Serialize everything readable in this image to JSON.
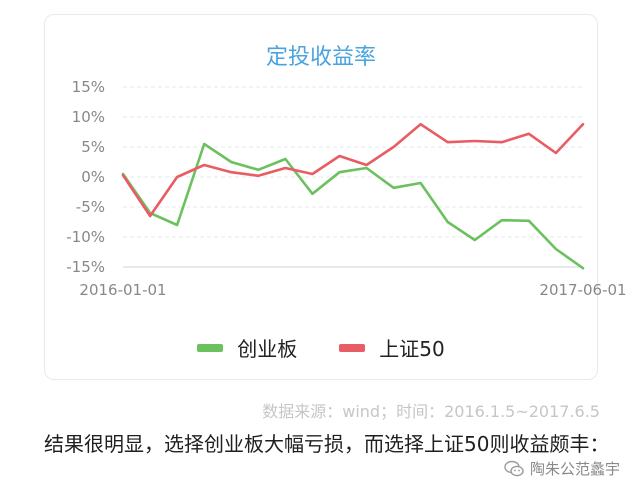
{
  "chart_data": {
    "type": "line",
    "title": "定投收益率",
    "x_tick_labels": [
      "2016-01-01",
      "2017-06-01"
    ],
    "y_tick_labels": [
      "15%",
      "10%",
      "5%",
      "0%",
      "-5%",
      "-10%",
      "-15%"
    ],
    "ylim": [
      -15,
      15
    ],
    "yticks": [
      15,
      10,
      5,
      0,
      -5,
      -10,
      -15
    ],
    "grid": "horizontal dashed",
    "legend_position": "bottom",
    "x": [
      "2016-01",
      "2016-02",
      "2016-03",
      "2016-04",
      "2016-05",
      "2016-06",
      "2016-07",
      "2016-08",
      "2016-09",
      "2016-10",
      "2016-11",
      "2016-12",
      "2017-01",
      "2017-02",
      "2017-03",
      "2017-04",
      "2017-05",
      "2017-06"
    ],
    "series": [
      {
        "name": "创业板",
        "color": "#6cc15f",
        "values": [
          0.5,
          -6.0,
          -8.0,
          5.5,
          2.5,
          1.2,
          3.0,
          -2.8,
          0.8,
          1.5,
          -1.8,
          -1.0,
          -7.5,
          -10.5,
          -7.2,
          -7.3,
          -12.0,
          -15.2
        ]
      },
      {
        "name": "上证50",
        "color": "#e85c63",
        "values": [
          0.3,
          -6.5,
          0.0,
          2.0,
          0.8,
          0.2,
          1.5,
          0.5,
          3.5,
          2.0,
          5.0,
          8.8,
          5.8,
          6.0,
          5.8,
          7.2,
          4.0,
          8.8
        ]
      }
    ]
  },
  "source_note": "数据来源：wind；时间：2016.1.5~2017.6.5",
  "body_text": "结果很明显，选择创业板大幅亏损，而选择上证50则收益颇丰：",
  "watermark": "陶朱公范蠡宇"
}
